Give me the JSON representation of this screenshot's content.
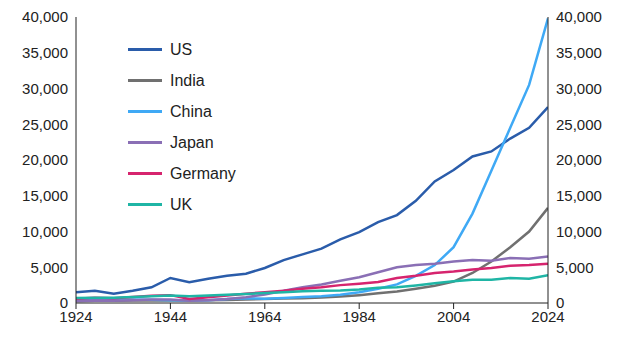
{
  "chart_data": {
    "type": "line",
    "x": [
      1924,
      1928,
      1932,
      1936,
      1940,
      1944,
      1948,
      1952,
      1956,
      1960,
      1964,
      1968,
      1972,
      1976,
      1980,
      1984,
      1988,
      1992,
      1996,
      2000,
      2004,
      2008,
      2012,
      2016,
      2020,
      2024
    ],
    "series": [
      {
        "name": "US",
        "color": "#2a5caa",
        "values": [
          1500,
          1700,
          1300,
          1700,
          2200,
          3500,
          2900,
          3400,
          3800,
          4100,
          4900,
          6000,
          6800,
          7600,
          8900,
          9900,
          11300,
          12300,
          14300,
          17000,
          18600,
          20500,
          21200,
          23000,
          24500,
          27400
        ]
      },
      {
        "name": "India",
        "color": "#707070",
        "values": [
          300,
          320,
          330,
          340,
          350,
          360,
          350,
          380,
          420,
          480,
          550,
          620,
          680,
          780,
          900,
          1100,
          1350,
          1600,
          2000,
          2400,
          3000,
          4200,
          5800,
          7800,
          10000,
          13300
        ]
      },
      {
        "name": "China",
        "color": "#3fa9f5",
        "values": [
          400,
          420,
          450,
          480,
          450,
          400,
          350,
          400,
          550,
          650,
          600,
          700,
          850,
          950,
          1150,
          1500,
          2000,
          2600,
          3800,
          5300,
          7800,
          12500,
          18500,
          24500,
          30500,
          39800
        ]
      },
      {
        "name": "Japan",
        "color": "#8a6fb5",
        "values": [
          250,
          300,
          320,
          400,
          500,
          500,
          300,
          400,
          550,
          800,
          1200,
          1700,
          2200,
          2600,
          3100,
          3600,
          4300,
          5000,
          5300,
          5500,
          5800,
          6000,
          5900,
          6300,
          6200,
          6500
        ]
      },
      {
        "name": "Germany",
        "color": "#d6246e",
        "values": [
          600,
          750,
          650,
          850,
          1000,
          1100,
          550,
          800,
          1050,
          1300,
          1500,
          1700,
          2000,
          2200,
          2500,
          2700,
          2950,
          3500,
          3800,
          4200,
          4400,
          4700,
          4900,
          5200,
          5300,
          5500
        ]
      },
      {
        "name": "UK",
        "color": "#1fb5a5",
        "values": [
          700,
          750,
          730,
          850,
          950,
          1050,
          950,
          1050,
          1150,
          1250,
          1400,
          1500,
          1650,
          1700,
          1750,
          1900,
          2150,
          2200,
          2450,
          2750,
          3050,
          3250,
          3250,
          3500,
          3400,
          3900
        ]
      }
    ],
    "xlim": [
      1924,
      2024
    ],
    "xticks": [
      1924,
      1944,
      1964,
      1984,
      2004,
      2024
    ],
    "ylim": [
      0,
      40000
    ],
    "yticks": [
      0,
      {
        "value": 5000,
        "label": "5,000"
      },
      {
        "value": 10000,
        "label": "10,000"
      },
      {
        "value": 15000,
        "label": "15,000"
      },
      {
        "value": 20000,
        "label": "20,000"
      },
      {
        "value": 25000,
        "label": "25,000"
      },
      {
        "value": 30000,
        "label": "30,000"
      },
      {
        "value": 35000,
        "label": "35,000"
      },
      {
        "value": 40000,
        "label": "40,000"
      }
    ],
    "grid": false,
    "legend": "top-left"
  }
}
